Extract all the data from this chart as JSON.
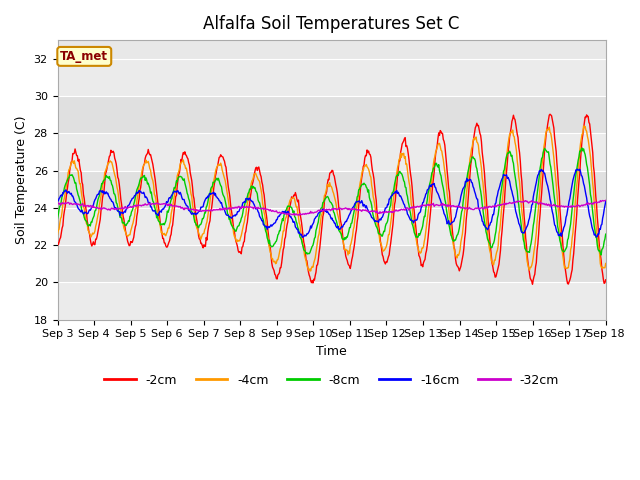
{
  "title": "Alfalfa Soil Temperatures Set C",
  "xlabel": "Time",
  "ylabel": "Soil Temperature (C)",
  "ylim": [
    18,
    33
  ],
  "yticks": [
    18,
    20,
    22,
    24,
    26,
    28,
    30,
    32
  ],
  "x_tick_labels": [
    "Sep 3",
    "Sep 4",
    "Sep 5",
    "Sep 6",
    "Sep 7",
    "Sep 8",
    "Sep 9",
    "Sep 10",
    "Sep 11",
    "Sep 12",
    "Sep 13",
    "Sep 14",
    "Sep 15",
    "Sep 16",
    "Sep 17",
    "Sep 18"
  ],
  "colors": {
    "-2cm": "#ff0000",
    "-4cm": "#ff9900",
    "-8cm": "#00cc00",
    "-16cm": "#0000ff",
    "-32cm": "#cc00cc"
  },
  "legend_label": "TA_met",
  "bg_color": "#e8e8e8",
  "bg_band_color": "#d8d8d8",
  "title_fontsize": 12,
  "axis_label_fontsize": 9,
  "tick_fontsize": 8
}
